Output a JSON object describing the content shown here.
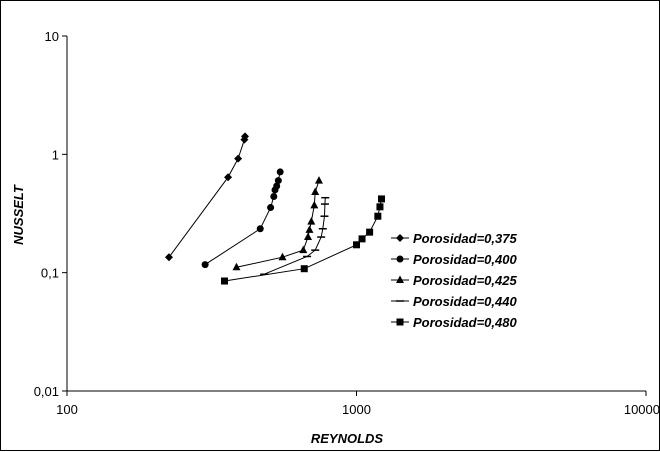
{
  "chart_data": {
    "type": "scatter",
    "title": "",
    "xlabel": "REYNOLDS",
    "ylabel": "NUSSELT",
    "xscale": "log",
    "yscale": "log",
    "xlim": [
      100,
      10000
    ],
    "ylim": [
      0.01,
      10
    ],
    "x_ticks": [
      {
        "v": 100,
        "label": "100"
      },
      {
        "v": 1000,
        "label": "1000"
      },
      {
        "v": 10000,
        "label": "10000"
      }
    ],
    "y_ticks": [
      {
        "v": 0.01,
        "label": "0,01"
      },
      {
        "v": 0.1,
        "label": "0,1"
      },
      {
        "v": 1,
        "label": "1"
      },
      {
        "v": 10,
        "label": "10"
      }
    ],
    "grid": false,
    "legend_position": "right",
    "line_color": "#000000",
    "series": [
      {
        "name": "Porosidad=0,375",
        "marker": "diamond",
        "points": [
          [
            225,
            0.135
          ],
          [
            360,
            0.64
          ],
          [
            390,
            0.92
          ],
          [
            410,
            1.33
          ],
          [
            412,
            1.42
          ]
        ]
      },
      {
        "name": "Porosidad=0,400",
        "marker": "circle",
        "points": [
          [
            300,
            0.117
          ],
          [
            465,
            0.235
          ],
          [
            505,
            0.355
          ],
          [
            518,
            0.44
          ],
          [
            523,
            0.5
          ],
          [
            530,
            0.54
          ],
          [
            537,
            0.6
          ],
          [
            545,
            0.71
          ]
        ]
      },
      {
        "name": "Porosidad=0,425",
        "marker": "triangle",
        "points": [
          [
            385,
            0.111
          ],
          [
            555,
            0.135
          ],
          [
            655,
            0.155
          ],
          [
            680,
            0.2
          ],
          [
            688,
            0.23
          ],
          [
            698,
            0.27
          ],
          [
            715,
            0.37
          ],
          [
            720,
            0.48
          ],
          [
            742,
            0.6
          ]
        ]
      },
      {
        "name": "Porosidad=0,440",
        "marker": "dash",
        "points": [
          [
            480,
            0.097
          ],
          [
            675,
            0.137
          ],
          [
            720,
            0.155
          ],
          [
            755,
            0.2
          ],
          [
            765,
            0.235
          ],
          [
            775,
            0.3
          ],
          [
            778,
            0.38
          ],
          [
            780,
            0.43
          ]
        ]
      },
      {
        "name": "Porosidad=0,480",
        "marker": "square",
        "points": [
          [
            350,
            0.085
          ],
          [
            660,
            0.108
          ],
          [
            1000,
            0.172
          ],
          [
            1045,
            0.193
          ],
          [
            1110,
            0.22
          ],
          [
            1185,
            0.3
          ],
          [
            1205,
            0.36
          ],
          [
            1220,
            0.42
          ]
        ]
      }
    ]
  }
}
